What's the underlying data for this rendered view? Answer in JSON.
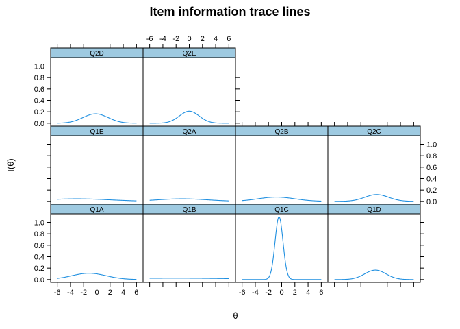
{
  "chart_data": {
    "type": "line",
    "title": "Item information trace lines",
    "xlabel": "θ",
    "ylabel": "I(θ)",
    "xlim": [
      -7,
      7
    ],
    "ylim": [
      -0.05,
      1.15
    ],
    "x_ticks": [
      -6,
      -4,
      -2,
      0,
      2,
      4,
      6
    ],
    "y_ticks": [
      0.0,
      0.2,
      0.4,
      0.6,
      0.8,
      1.0
    ],
    "x_tick_labels": [
      "-6",
      "-4",
      "-2",
      "0",
      "2",
      "4",
      "6"
    ],
    "y_tick_labels": [
      "0.0",
      "0.2",
      "0.4",
      "0.6",
      "0.8",
      "1.0"
    ],
    "grid": false,
    "series": [
      {
        "name": "Q1A",
        "peak": 0.11,
        "center": -1.2,
        "spread": 2.6
      },
      {
        "name": "Q1B",
        "peak": 0.024,
        "center": -2.0,
        "spread": 9.0
      },
      {
        "name": "Q1C",
        "peak": 1.1,
        "center": -0.4,
        "spread": 0.6
      },
      {
        "name": "Q1D",
        "peak": 0.165,
        "center": 0.2,
        "spread": 1.6
      },
      {
        "name": "Q1E",
        "peak": 0.045,
        "center": -3.0,
        "spread": 5.0
      },
      {
        "name": "Q2A",
        "peak": 0.045,
        "center": -1.0,
        "spread": 3.8
      },
      {
        "name": "Q2B",
        "peak": 0.075,
        "center": -0.8,
        "spread": 2.8
      },
      {
        "name": "Q2C",
        "peak": 0.12,
        "center": 0.4,
        "spread": 1.8
      },
      {
        "name": "Q2D",
        "peak": 0.165,
        "center": -0.2,
        "spread": 1.9
      },
      {
        "name": "Q2E",
        "peak": 0.21,
        "center": 0.0,
        "spread": 1.5
      }
    ],
    "panels": [
      {
        "name": "Q1A",
        "col": 0,
        "row": 0
      },
      {
        "name": "Q1B",
        "col": 1,
        "row": 0
      },
      {
        "name": "Q1C",
        "col": 2,
        "row": 0
      },
      {
        "name": "Q1D",
        "col": 3,
        "row": 0
      },
      {
        "name": "Q1E",
        "col": 0,
        "row": 1
      },
      {
        "name": "Q2A",
        "col": 1,
        "row": 1
      },
      {
        "name": "Q2B",
        "col": 2,
        "row": 1
      },
      {
        "name": "Q2C",
        "col": 3,
        "row": 1
      },
      {
        "name": "Q2D",
        "col": 0,
        "row": 2
      },
      {
        "name": "Q2E",
        "col": 1,
        "row": 2
      }
    ],
    "colors": {
      "line": "#1f8fe0",
      "strip": "#9ecae1"
    }
  }
}
